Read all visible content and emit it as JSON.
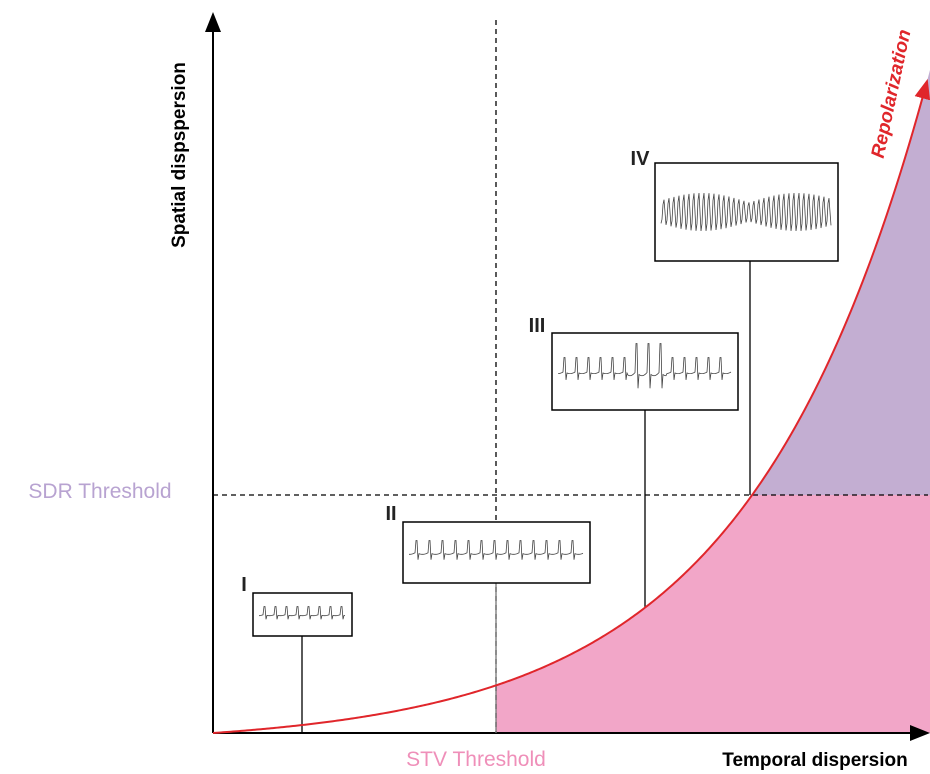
{
  "axes": {
    "y_label": "Spatial dispspersion",
    "x_label": "Temporal dispersion"
  },
  "thresholds": {
    "sdr": "SDR Threshold",
    "stv": "STV Threshold"
  },
  "curve_label": "Repolarization",
  "stages": [
    "I",
    "II",
    "III",
    "IV"
  ]
}
